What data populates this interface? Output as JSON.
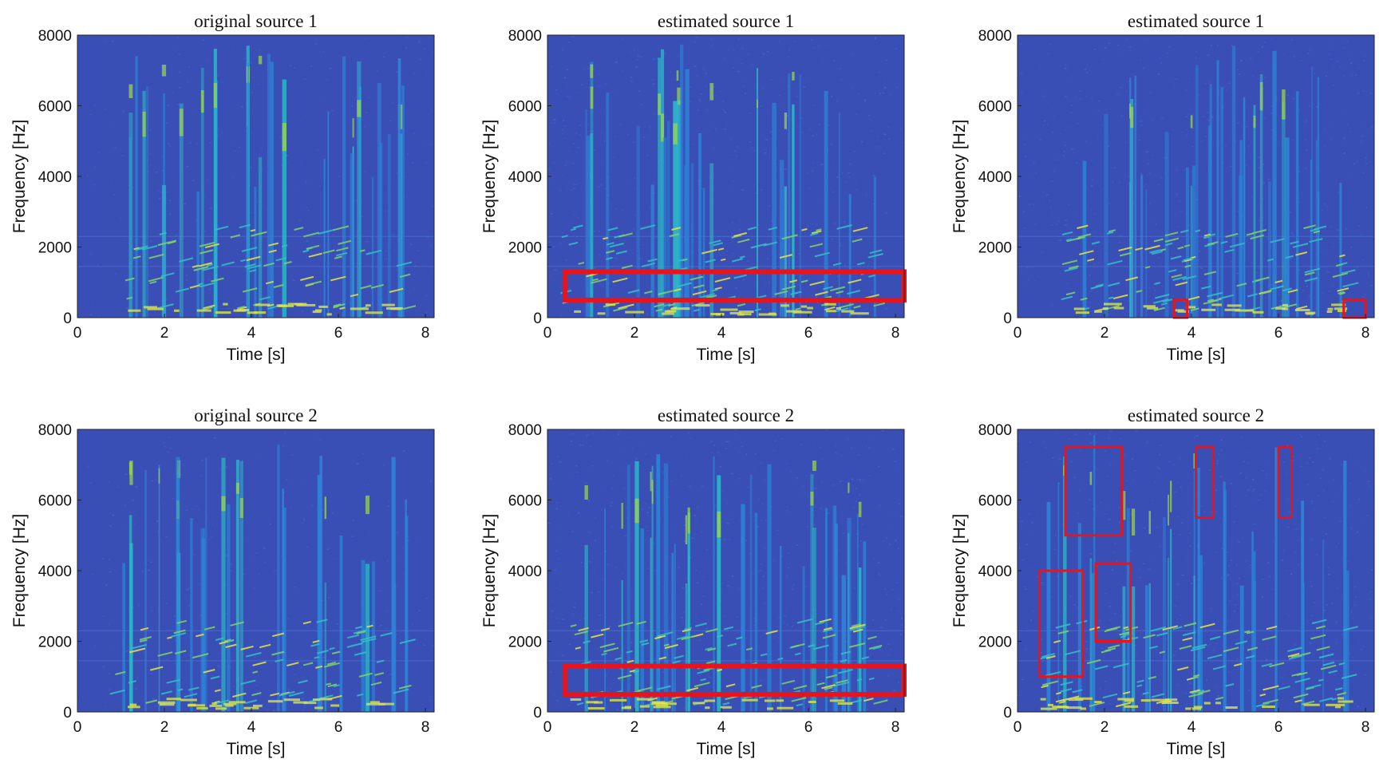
{
  "chart_data": [
    {
      "type": "heatmap",
      "title": "original source 1",
      "xlabel": "Time [s]",
      "ylabel": "Frequency [Hz]",
      "xlim": [
        0,
        8.2
      ],
      "ylim": [
        0,
        8000
      ],
      "xticks": [
        "0",
        "2",
        "4",
        "6",
        "8"
      ],
      "yticks": [
        "0",
        "2000",
        "4000",
        "6000",
        "8000"
      ],
      "seed": 11,
      "onset": 1.0,
      "dense": false,
      "highlights": []
    },
    {
      "type": "heatmap",
      "title": "estimated source 1",
      "xlabel": "Time [s]",
      "ylabel": "Frequency [Hz]",
      "xlim": [
        0,
        8.2
      ],
      "ylim": [
        0,
        8000
      ],
      "xticks": [
        "0",
        "2",
        "4",
        "6",
        "8"
      ],
      "yticks": [
        "0",
        "2000",
        "4000",
        "6000",
        "8000"
      ],
      "seed": 23,
      "onset": 0.3,
      "dense": true,
      "highlights": [
        {
          "x0": 0.4,
          "x1": 8.2,
          "y0": 500,
          "y1": 1300,
          "thick": true
        }
      ]
    },
    {
      "type": "heatmap",
      "title": "estimated source 1",
      "xlabel": "Time [s]",
      "ylabel": "Frequency [Hz]",
      "xlim": [
        0,
        8.2
      ],
      "ylim": [
        0,
        8000
      ],
      "xticks": [
        "0",
        "2",
        "4",
        "6",
        "8"
      ],
      "yticks": [
        "0",
        "2000",
        "4000",
        "6000",
        "8000"
      ],
      "seed": 37,
      "onset": 1.0,
      "dense": true,
      "highlights": [
        {
          "x0": 3.6,
          "x1": 3.9,
          "y0": 0,
          "y1": 500,
          "thick": false
        },
        {
          "x0": 7.5,
          "x1": 8.0,
          "y0": 0,
          "y1": 500,
          "thick": false
        }
      ]
    },
    {
      "type": "heatmap",
      "title": "original source 2",
      "xlabel": "Time [s]",
      "ylabel": "Frequency [Hz]",
      "xlim": [
        0,
        8.2
      ],
      "ylim": [
        0,
        8000
      ],
      "xticks": [
        "0",
        "2",
        "4",
        "6",
        "8"
      ],
      "yticks": [
        "0",
        "2000",
        "4000",
        "6000",
        "8000"
      ],
      "seed": 53,
      "onset": 0.7,
      "dense": false,
      "highlights": []
    },
    {
      "type": "heatmap",
      "title": "estimated source 2",
      "xlabel": "Time [s]",
      "ylabel": "Frequency [Hz]",
      "xlim": [
        0,
        8.2
      ],
      "ylim": [
        0,
        8000
      ],
      "xticks": [
        "0",
        "2",
        "4",
        "6",
        "8"
      ],
      "yticks": [
        "0",
        "2000",
        "4000",
        "6000",
        "8000"
      ],
      "seed": 71,
      "onset": 0.5,
      "dense": true,
      "highlights": [
        {
          "x0": 0.4,
          "x1": 8.2,
          "y0": 500,
          "y1": 1300,
          "thick": true
        }
      ]
    },
    {
      "type": "heatmap",
      "title": "estimated source 2",
      "xlabel": "Time [s]",
      "ylabel": "Frequency [Hz]",
      "xlim": [
        0,
        8.2
      ],
      "ylim": [
        0,
        8000
      ],
      "xticks": [
        "0",
        "2",
        "4",
        "6",
        "8"
      ],
      "yticks": [
        "0",
        "2000",
        "4000",
        "6000",
        "8000"
      ],
      "seed": 89,
      "onset": 0.5,
      "dense": true,
      "highlights": [
        {
          "x0": 0.5,
          "x1": 1.5,
          "y0": 1000,
          "y1": 4000,
          "thick": false
        },
        {
          "x0": 1.8,
          "x1": 2.6,
          "y0": 2000,
          "y1": 4200,
          "thick": false
        },
        {
          "x0": 1.1,
          "x1": 2.4,
          "y0": 5000,
          "y1": 7500,
          "thick": false
        },
        {
          "x0": 4.1,
          "x1": 4.5,
          "y0": 5500,
          "y1": 7500,
          "thick": false
        },
        {
          "x0": 6.0,
          "x1": 6.3,
          "y0": 5500,
          "y1": 7500,
          "thick": false
        }
      ]
    }
  ],
  "colors": {
    "background": "#3a4fb5",
    "highlight": "#e8141b",
    "axis": "#222222"
  }
}
